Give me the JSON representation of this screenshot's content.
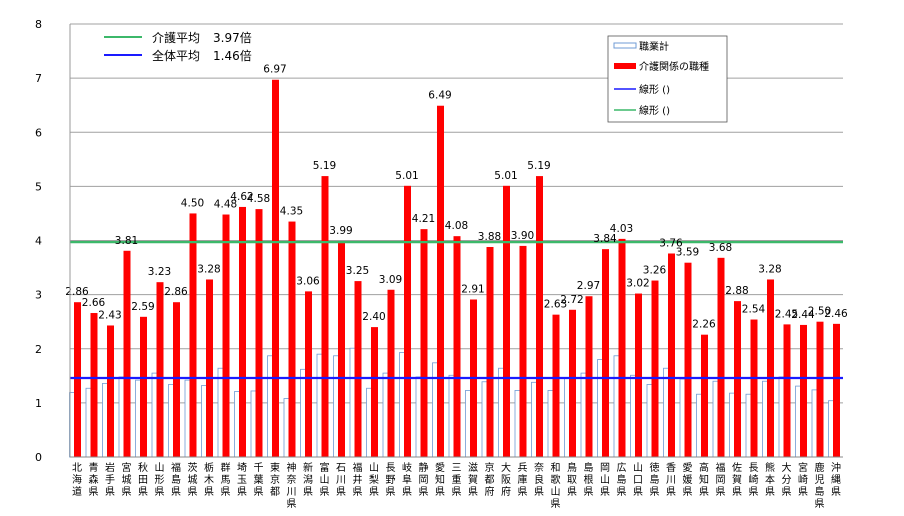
{
  "chart_data": {
    "type": "bar",
    "title": "",
    "xlabel": "",
    "ylabel": "",
    "ylim": [
      0,
      8
    ],
    "yticks": [
      "0",
      "1",
      "2",
      "3",
      "4",
      "5",
      "6",
      "7",
      "8"
    ],
    "grid": true,
    "legend_position": "top-right",
    "categories": [
      "北海道",
      "青森県",
      "岩手県",
      "宮城県",
      "秋田県",
      "山形県",
      "福島県",
      "茨城県",
      "栃木県",
      "群馬県",
      "埼玉県",
      "千葉県",
      "東京都",
      "神奈川県",
      "新潟県",
      "富山県",
      "石川県",
      "福井県",
      "山梨県",
      "長野県",
      "岐阜県",
      "静岡県",
      "愛知県",
      "三重県",
      "滋賀県",
      "京都府",
      "大阪府",
      "兵庫県",
      "奈良県",
      "和歌山県",
      "鳥取県",
      "島根県",
      "岡山県",
      "広島県",
      "山口県",
      "徳島県",
      "香川県",
      "愛媛県",
      "高知県",
      "福岡県",
      "佐賀県",
      "長崎県",
      "熊本県",
      "大分県",
      "宮崎県",
      "鹿児島県",
      "沖縄県"
    ],
    "series": [
      {
        "name": "職業計",
        "color": "#ffffff",
        "stroke": "#6f9bd4",
        "values": [
          1.19,
          1.27,
          1.36,
          1.48,
          1.42,
          1.55,
          1.34,
          1.42,
          1.32,
          1.64,
          1.21,
          1.22,
          1.87,
          1.08,
          1.62,
          1.9,
          1.87,
          2.01,
          1.27,
          1.55,
          1.93,
          1.48,
          1.74,
          1.51,
          1.23,
          1.39,
          1.64,
          1.23,
          1.38,
          1.23,
          1.45,
          1.55,
          1.8,
          1.87,
          1.51,
          1.34,
          1.64,
          1.44,
          1.16,
          1.4,
          1.18,
          1.16,
          1.4,
          1.48,
          1.31,
          1.24,
          1.04
        ]
      },
      {
        "name": "介護関係の職種",
        "color": "#ff0000",
        "values": [
          2.86,
          2.66,
          2.43,
          3.81,
          2.59,
          3.23,
          2.86,
          4.5,
          3.28,
          4.48,
          4.62,
          4.58,
          6.97,
          4.35,
          3.06,
          5.19,
          3.99,
          3.25,
          2.4,
          3.09,
          5.01,
          4.21,
          6.49,
          4.08,
          2.91,
          3.88,
          5.01,
          3.9,
          5.19,
          2.63,
          2.72,
          2.97,
          3.84,
          4.03,
          3.02,
          3.26,
          3.76,
          3.59,
          2.26,
          3.68,
          2.88,
          2.54,
          3.28,
          2.45,
          2.44,
          2.5,
          2.46
        ],
        "data_labels": [
          "2.86",
          "2.66",
          "2.43",
          "3.81",
          "2.59",
          "3.23",
          "2.86",
          "4.50",
          "3.28",
          "4.48",
          "4.62",
          "4.58",
          "6.97",
          "4.35",
          "3.06",
          "5.19",
          "3.99",
          "3.25",
          "2.40",
          "3.09",
          "5.01",
          "4.21",
          "6.49",
          "4.08",
          "2.91",
          "3.88",
          "5.01",
          "3.90",
          "5.19",
          "2.63",
          "2.72",
          "2.97",
          "3.84",
          "4.03",
          "3.02",
          "3.26",
          "3.76",
          "3.59",
          "2.26",
          "3.68",
          "2.88",
          "2.54",
          "3.28",
          "2.45",
          "2.44",
          "2.50",
          "2.46"
        ]
      },
      {
        "name": "線形 ()",
        "type": "hline",
        "value": 1.46,
        "color": "#1a1aff"
      },
      {
        "name": "線形 ()",
        "type": "hline",
        "value": 3.97,
        "color": "#3cb86a"
      }
    ],
    "annotations": [
      {
        "label": "介護平均",
        "value": "3.97倍",
        "color": "#3cb86a"
      },
      {
        "label": "全体平均",
        "value": "1.46倍",
        "color": "#1a1aff"
      }
    ]
  }
}
